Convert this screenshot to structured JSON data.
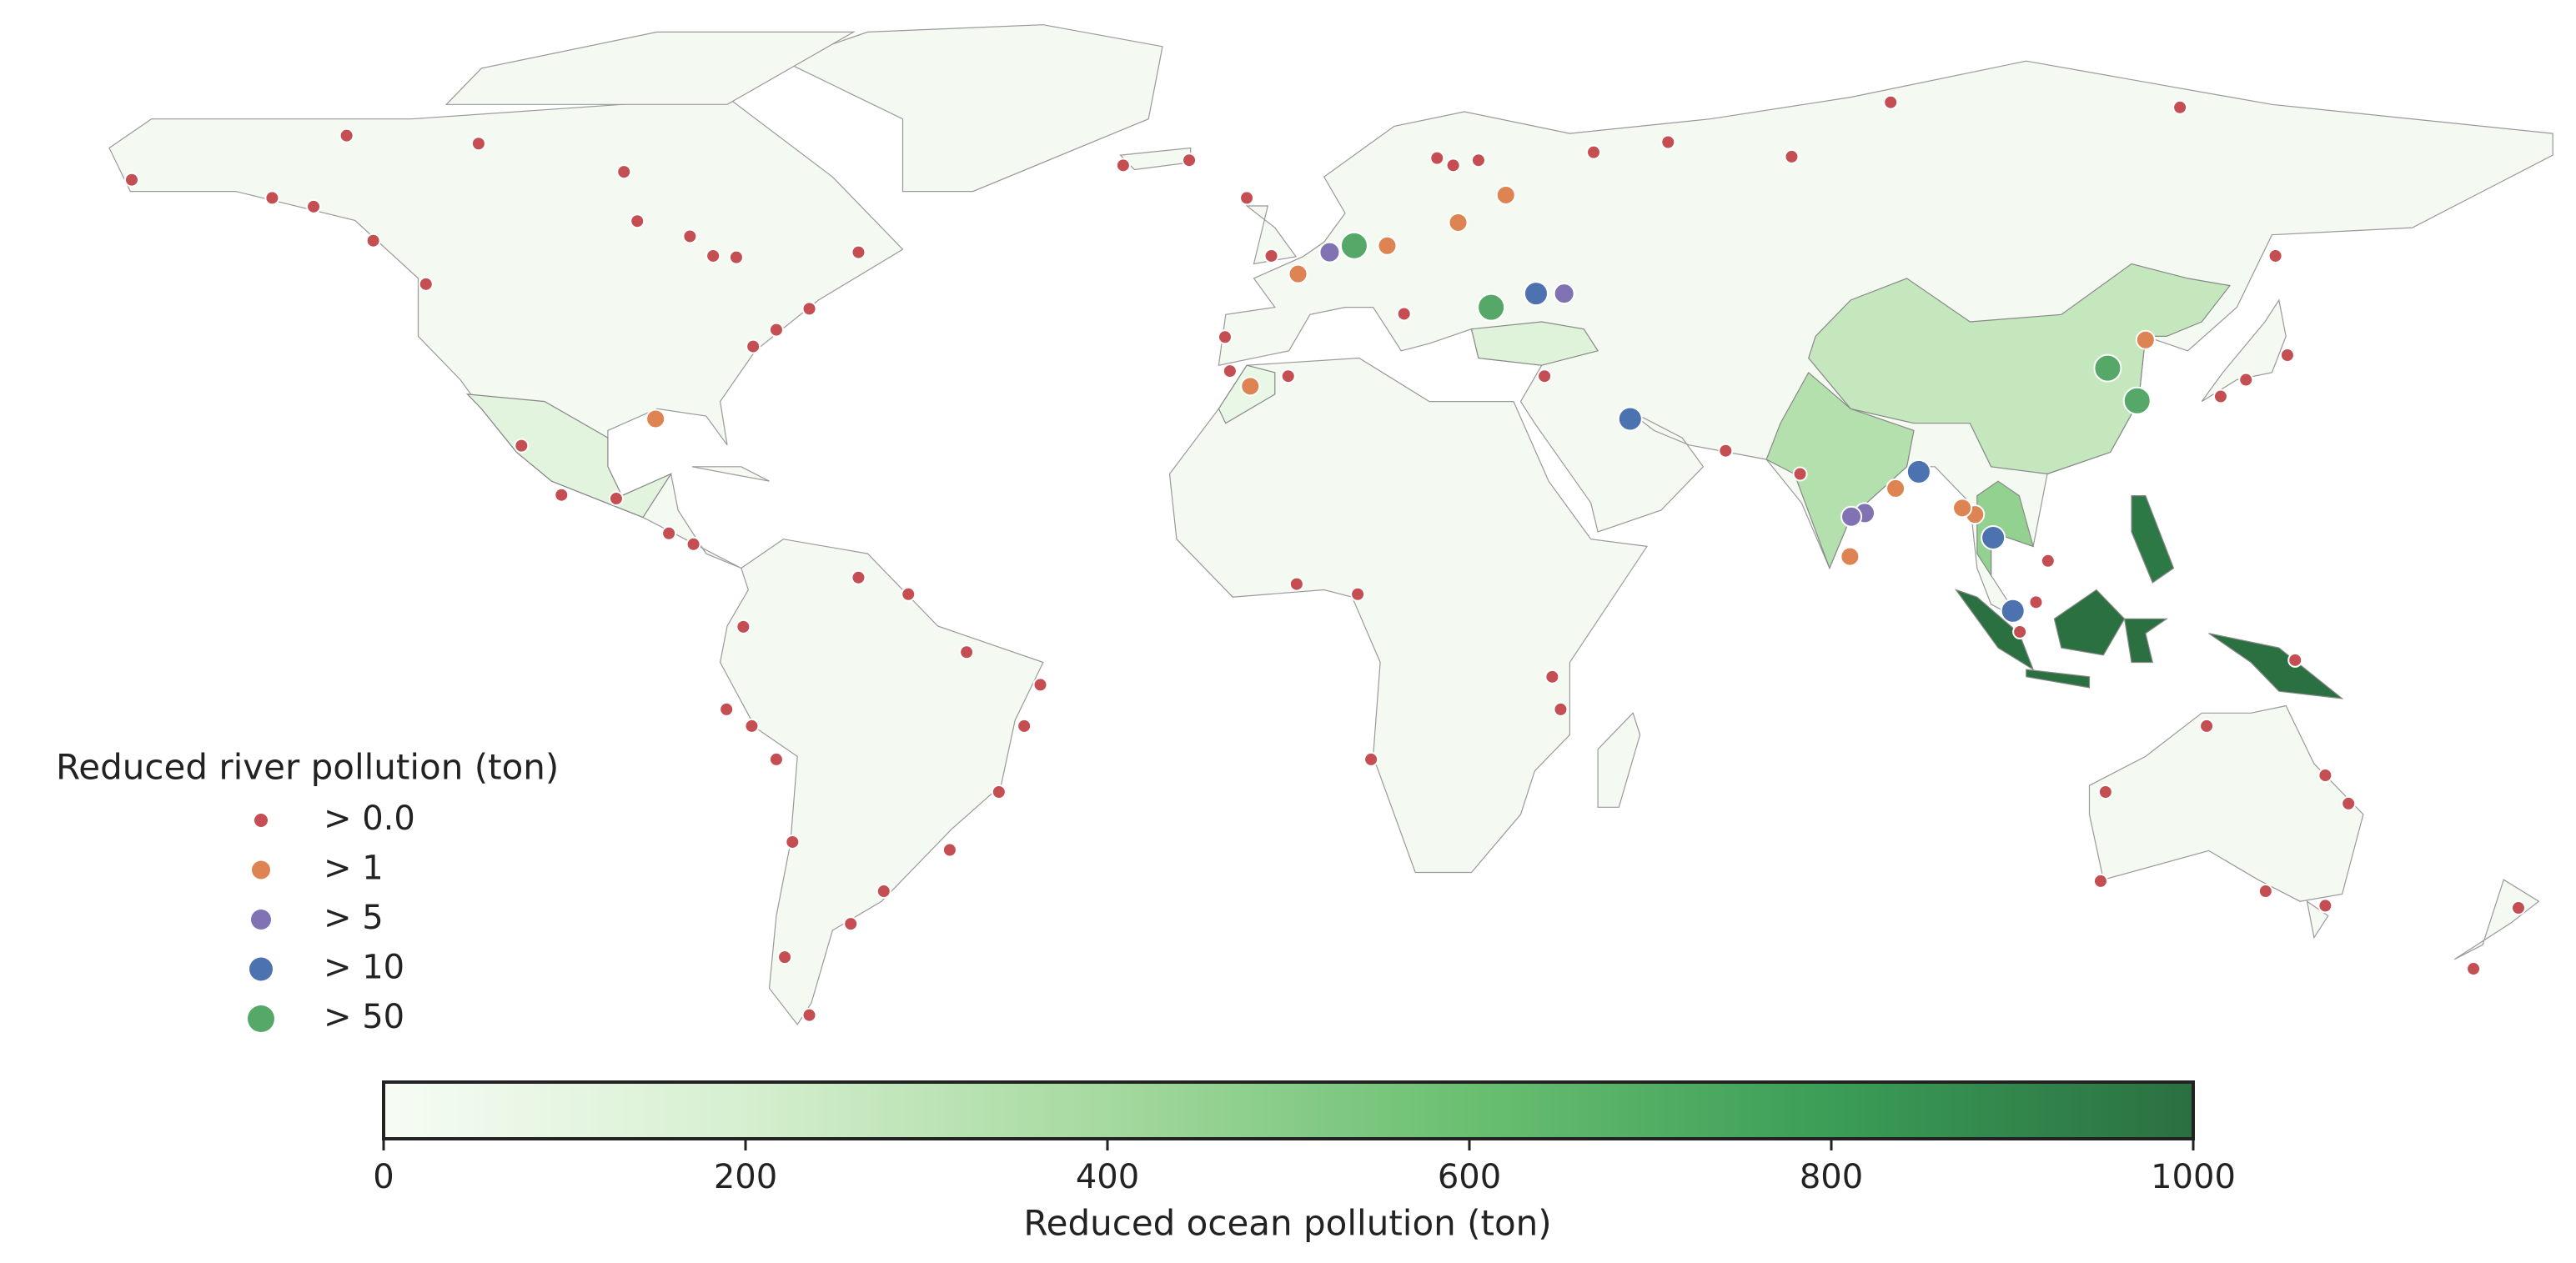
{
  "chart_data": {
    "type": "map",
    "legend": {
      "title": "Reduced river pollution (ton)",
      "items": [
        {
          "label": "> 0.0",
          "color": "#c44e52"
        },
        {
          "label": "> 1",
          "color": "#dd8452"
        },
        {
          "label": "> 5",
          "color": "#8172b3"
        },
        {
          "label": "> 10",
          "color": "#4c72b0"
        },
        {
          "label": "> 50",
          "color": "#55a868"
        }
      ]
    },
    "regions": {
      "values": [
        270,
        340,
        460,
        1000,
        960,
        120,
        140,
        80
      ]
    },
    "colorbar": {
      "label": "Reduced ocean pollution (ton)",
      "lim": [
        0,
        1000
      ],
      "ticks": [
        0,
        200,
        400,
        600,
        800,
        1000
      ],
      "colors": [
        "#f7fcf5",
        "#d5efcf",
        "#a5d99f",
        "#6abf71",
        "#3b9d57",
        "#2a7041"
      ]
    },
    "points": [
      {
        "lon": 5.8,
        "lat": 51.6,
        "class": 2
      },
      {
        "lon": 9.3,
        "lat": 52.5,
        "class": 4
      },
      {
        "lon": 1.3,
        "lat": 48.6,
        "class": 1
      },
      {
        "lon": 14.0,
        "lat": 52.5,
        "class": 1
      },
      {
        "lon": 24.1,
        "lat": 55.7,
        "class": 1
      },
      {
        "lon": 30.9,
        "lat": 59.5,
        "class": 1
      },
      {
        "lon": 28.8,
        "lat": 44.0,
        "class": 4
      },
      {
        "lon": 35.2,
        "lat": 45.9,
        "class": 3
      },
      {
        "lon": 39.2,
        "lat": 45.9,
        "class": 2
      },
      {
        "lon": 48.6,
        "lat": 28.6,
        "class": 3
      },
      {
        "lon": -5.5,
        "lat": 33.1,
        "class": 1
      },
      {
        "lon": -90.2,
        "lat": 28.6,
        "class": 1
      },
      {
        "lon": 116.6,
        "lat": 35.6,
        "class": 4
      },
      {
        "lon": 120.8,
        "lat": 31.1,
        "class": 4
      },
      {
        "lon": 122.0,
        "lat": 39.5,
        "class": 1
      },
      {
        "lon": 89.7,
        "lat": 21.3,
        "class": 3
      },
      {
        "lon": 86.4,
        "lat": 19.0,
        "class": 1
      },
      {
        "lon": 82.0,
        "lat": 15.6,
        "class": 2
      },
      {
        "lon": 80.1,
        "lat": 15.1,
        "class": 2
      },
      {
        "lon": 79.9,
        "lat": 9.6,
        "class": 1
      },
      {
        "lon": 97.7,
        "lat": 15.4,
        "class": 1
      },
      {
        "lon": 95.9,
        "lat": 16.3,
        "class": 1
      },
      {
        "lon": 100.3,
        "lat": 12.2,
        "class": 3
      },
      {
        "lon": 103.1,
        "lat": 2.1,
        "class": 3
      },
      {
        "lon": -164.8,
        "lat": 61.6,
        "class": 0
      },
      {
        "lon": -134.2,
        "lat": 67.7,
        "class": 0
      },
      {
        "lon": -115.4,
        "lat": 66.6,
        "class": 0
      },
      {
        "lon": -94.7,
        "lat": 62.7,
        "class": 0
      },
      {
        "lon": -92.8,
        "lat": 55.9,
        "class": 0
      },
      {
        "lon": -85.3,
        "lat": 53.8,
        "class": 0
      },
      {
        "lon": -82.0,
        "lat": 51.1,
        "class": 0
      },
      {
        "lon": -78.7,
        "lat": 50.9,
        "class": 0
      },
      {
        "lon": -61.3,
        "lat": 51.6,
        "class": 0
      },
      {
        "lon": -68.3,
        "lat": 43.8,
        "class": 0
      },
      {
        "lon": -73.0,
        "lat": 40.9,
        "class": 0
      },
      {
        "lon": -76.3,
        "lat": 38.6,
        "class": 0
      },
      {
        "lon": -122.9,
        "lat": 47.2,
        "class": 0
      },
      {
        "lon": -130.4,
        "lat": 53.2,
        "class": 0
      },
      {
        "lon": -144.8,
        "lat": 59.1,
        "class": 0
      },
      {
        "lon": -138.9,
        "lat": 57.9,
        "class": 0
      },
      {
        "lon": -109.3,
        "lat": 24.9,
        "class": 0
      },
      {
        "lon": -103.6,
        "lat": 18.1,
        "class": 0
      },
      {
        "lon": -95.8,
        "lat": 17.6,
        "class": 0
      },
      {
        "lon": -88.3,
        "lat": 12.8,
        "class": 0
      },
      {
        "lon": -84.8,
        "lat": 11.3,
        "class": 0
      },
      {
        "lon": -77.7,
        "lat": -0.1,
        "class": 0
      },
      {
        "lon": -80.1,
        "lat": -11.5,
        "class": 0
      },
      {
        "lon": -76.5,
        "lat": -13.8,
        "class": 0
      },
      {
        "lon": -73.0,
        "lat": -18.4,
        "class": 0
      },
      {
        "lon": -61.3,
        "lat": 6.7,
        "class": 0
      },
      {
        "lon": -54.2,
        "lat": 4.4,
        "class": 0
      },
      {
        "lon": -45.9,
        "lat": -3.6,
        "class": 0
      },
      {
        "lon": -35.4,
        "lat": -8.1,
        "class": 0
      },
      {
        "lon": -37.7,
        "lat": -13.8,
        "class": 0
      },
      {
        "lon": -41.3,
        "lat": -22.9,
        "class": 0
      },
      {
        "lon": -48.3,
        "lat": -30.9,
        "class": 0
      },
      {
        "lon": -57.7,
        "lat": -36.6,
        "class": 0
      },
      {
        "lon": -62.4,
        "lat": -41.1,
        "class": 0
      },
      {
        "lon": -70.7,
        "lat": -29.8,
        "class": 0
      },
      {
        "lon": -71.8,
        "lat": -45.7,
        "class": 0
      },
      {
        "lon": -68.3,
        "lat": -53.7,
        "class": 0
      },
      {
        "lon": 1.1,
        "lat": 5.8,
        "class": 0
      },
      {
        "lon": 9.8,
        "lat": 4.4,
        "class": 0
      },
      {
        "lon": 11.7,
        "lat": -18.4,
        "class": 0
      },
      {
        "lon": 38.7,
        "lat": -11.5,
        "class": 0
      },
      {
        "lon": 37.5,
        "lat": -7.0,
        "class": 0
      },
      {
        "lon": -23.6,
        "lat": 63.6,
        "class": 0
      },
      {
        "lon": -14.2,
        "lat": 64.3,
        "class": 0
      },
      {
        "lon": -6.0,
        "lat": 59.1,
        "class": 0
      },
      {
        "lon": 23.4,
        "lat": 63.6,
        "class": 0
      },
      {
        "lon": 43.4,
        "lat": 65.4,
        "class": 0
      },
      {
        "lon": 54.0,
        "lat": 66.8,
        "class": 0
      },
      {
        "lon": 71.6,
        "lat": 64.8,
        "class": 0
      },
      {
        "lon": 85.7,
        "lat": 72.3,
        "class": 0
      },
      {
        "lon": 126.9,
        "lat": 71.6,
        "class": 0
      },
      {
        "lon": 140.5,
        "lat": 51.1,
        "class": 0
      },
      {
        "lon": 142.2,
        "lat": 37.4,
        "class": 0
      },
      {
        "lon": 136.3,
        "lat": 34.0,
        "class": 0
      },
      {
        "lon": 132.7,
        "lat": 31.7,
        "class": 0
      },
      {
        "lon": 116.3,
        "lat": -22.9,
        "class": 0
      },
      {
        "lon": 115.6,
        "lat": -35.2,
        "class": 0
      },
      {
        "lon": 147.6,
        "lat": -20.6,
        "class": 0
      },
      {
        "lon": 150.9,
        "lat": -24.5,
        "class": 0
      },
      {
        "lon": 147.6,
        "lat": -38.6,
        "class": 0
      },
      {
        "lon": 139.1,
        "lat": -36.6,
        "class": 0
      },
      {
        "lon": 143.3,
        "lat": -4.7,
        "class": 0
      },
      {
        "lon": 175.1,
        "lat": -38.9,
        "class": 0
      },
      {
        "lon": 168.7,
        "lat": -47.3,
        "class": 0
      },
      {
        "lon": 108.1,
        "lat": 9.0,
        "class": 0
      },
      {
        "lon": 106.4,
        "lat": 3.3,
        "class": 0
      },
      {
        "lon": 104.1,
        "lat": -0.8,
        "class": 0
      },
      {
        "lon": 62.2,
        "lat": 24.2,
        "class": 0
      },
      {
        "lon": 72.8,
        "lat": 21.0,
        "class": 0
      },
      {
        "lon": 36.4,
        "lat": 34.5,
        "class": 0
      },
      {
        "lon": 16.4,
        "lat": 43.1,
        "class": 0
      },
      {
        "lon": -9.1,
        "lat": 39.9,
        "class": 0
      },
      {
        "lon": -8.4,
        "lat": 35.2,
        "class": 0
      },
      {
        "lon": -0.1,
        "lat": 34.5,
        "class": 0
      },
      {
        "lon": -2.5,
        "lat": 51.1,
        "class": 0
      },
      {
        "lon": 21.1,
        "lat": 64.6,
        "class": 0
      },
      {
        "lon": 27.0,
        "lat": 64.3,
        "class": 0
      },
      {
        "lon": 130.7,
        "lat": -13.8,
        "class": 0
      }
    ]
  }
}
